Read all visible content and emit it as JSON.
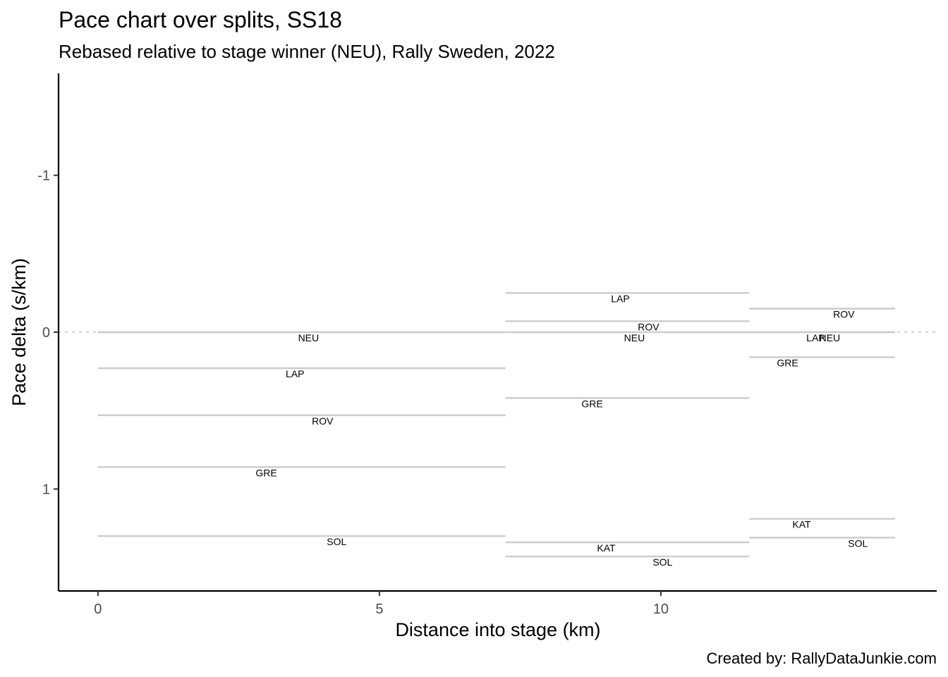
{
  "chart_data": {
    "type": "line",
    "title": "Pace chart over splits, SS18",
    "subtitle": "Rebased relative to stage winner (NEU), Rally Sweden, 2022",
    "xlabel": "Distance into stage (km)",
    "ylabel": "Pace delta (s/km)",
    "xlim": [
      -0.7,
      14.9
    ],
    "ylim": [
      1.65,
      -1.65
    ],
    "y_reversed": true,
    "x_ticks": [
      0,
      5,
      10
    ],
    "y_ticks": [
      -1,
      0,
      1
    ],
    "y_tick_labels": [
      "-1",
      "0",
      "1"
    ],
    "reference_line": {
      "y": 0,
      "style": "dotted"
    },
    "grid": false,
    "caption": "Created by: RallyDataJunkie.com",
    "series": [
      {
        "name": "NEU",
        "segments": [
          {
            "x_start": 0,
            "x_end": 7.24,
            "pace": 0,
            "label_x": 3.74
          },
          {
            "x_start": 7.24,
            "x_end": 11.57,
            "pace": 0,
            "label_x": 9.53
          },
          {
            "x_start": 11.57,
            "x_end": 14.16,
            "pace": 0,
            "label_x": 13.0
          }
        ]
      },
      {
        "name": "LAP",
        "segments": [
          {
            "x_start": 0,
            "x_end": 7.24,
            "pace": 0.23,
            "label_x": 3.5
          },
          {
            "x_start": 7.24,
            "x_end": 11.57,
            "pace": -0.25,
            "label_x": 9.28
          },
          {
            "x_start": 11.57,
            "x_end": 14.16,
            "pace": 0.0,
            "label_x": 12.75
          }
        ]
      },
      {
        "name": "ROV",
        "segments": [
          {
            "x_start": 0,
            "x_end": 7.24,
            "pace": 0.53,
            "label_x": 3.99
          },
          {
            "x_start": 7.24,
            "x_end": 11.57,
            "pace": -0.07,
            "label_x": 9.78
          },
          {
            "x_start": 11.57,
            "x_end": 14.16,
            "pace": -0.15,
            "label_x": 13.25
          }
        ]
      },
      {
        "name": "GRE",
        "segments": [
          {
            "x_start": 0,
            "x_end": 7.24,
            "pace": 0.86,
            "label_x": 2.99
          },
          {
            "x_start": 7.24,
            "x_end": 11.57,
            "pace": 0.42,
            "label_x": 8.78
          },
          {
            "x_start": 11.57,
            "x_end": 14.16,
            "pace": 0.16,
            "label_x": 12.25
          }
        ]
      },
      {
        "name": "SOL",
        "segments": [
          {
            "x_start": 0,
            "x_end": 7.24,
            "pace": 1.3,
            "label_x": 4.24
          },
          {
            "x_start": 7.24,
            "x_end": 11.57,
            "pace": 1.43,
            "label_x": 10.03
          },
          {
            "x_start": 11.57,
            "x_end": 14.16,
            "pace": 1.31,
            "label_x": 13.5
          }
        ]
      },
      {
        "name": "KAT",
        "segments": [
          {
            "x_start": 7.24,
            "x_end": 11.57,
            "pace": 1.34,
            "label_x": 9.03
          },
          {
            "x_start": 11.57,
            "x_end": 14.16,
            "pace": 1.19,
            "label_x": 12.5
          }
        ]
      }
    ]
  },
  "colors": {
    "segment": "#cccccc",
    "axis": "#000000",
    "tick_text": "#4d4d4d",
    "reference": "#cccccc"
  }
}
